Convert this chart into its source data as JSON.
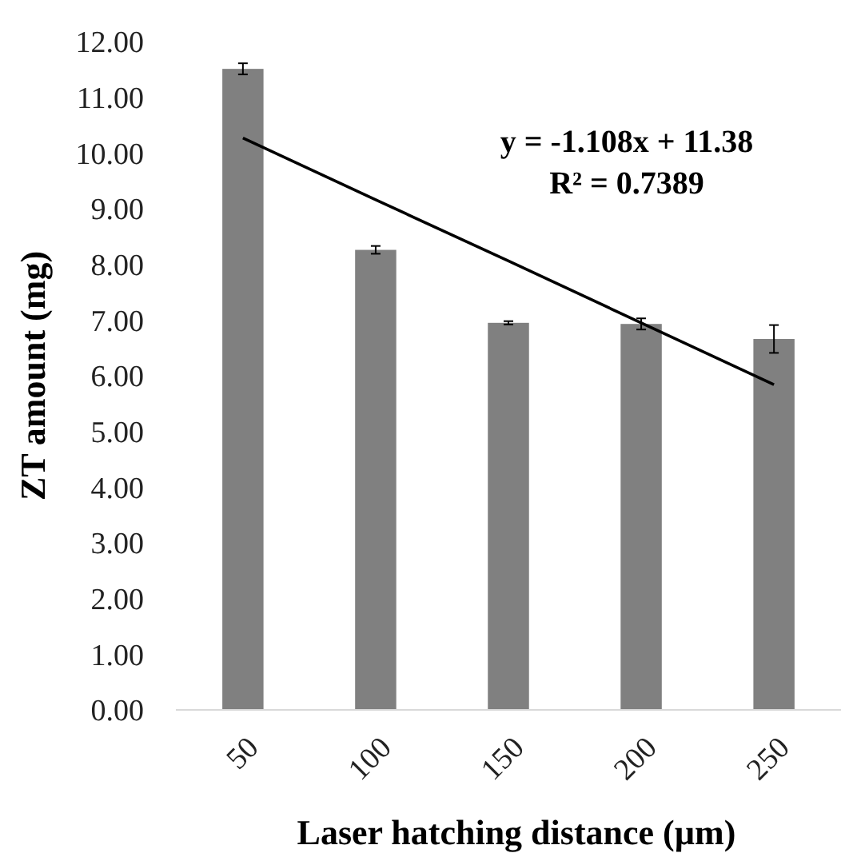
{
  "chart_data": {
    "type": "bar",
    "xlabel": "Laser hatching distance (µm)",
    "ylabel": "ZT amount (mg)",
    "categories": [
      "50",
      "100",
      "150",
      "200",
      "250"
    ],
    "series": [
      {
        "color": "#808080",
        "values": [
          11.51,
          8.26,
          6.95,
          6.93,
          6.66
        ],
        "errors": [
          0.1,
          0.07,
          0.03,
          0.1,
          0.25
        ]
      },
      {
        "type": "line",
        "color": "#000000",
        "values": [
          10.27,
          9.16,
          8.06,
          6.95,
          5.84
        ]
      }
    ],
    "annotations": [
      "y = -1.108x + 11.38",
      "R² = 0.7389"
    ],
    "ylim": [
      0,
      12
    ],
    "yticks": [
      {
        "value": 0,
        "label": "0.00"
      },
      {
        "value": 1,
        "label": "1.00"
      },
      {
        "value": 2,
        "label": "2.00"
      },
      {
        "value": 3,
        "label": "3.00"
      },
      {
        "value": 4,
        "label": "4.00"
      },
      {
        "value": 5,
        "label": "5.00"
      },
      {
        "value": 6,
        "label": "6.00"
      },
      {
        "value": 7,
        "label": "7.00"
      },
      {
        "value": 8,
        "label": "8.00"
      },
      {
        "value": 9,
        "label": "9.00"
      },
      {
        "value": 10,
        "label": "10.00"
      },
      {
        "value": 11,
        "label": "11.00"
      },
      {
        "value": 12,
        "label": "12.00"
      }
    ],
    "grid": false
  }
}
